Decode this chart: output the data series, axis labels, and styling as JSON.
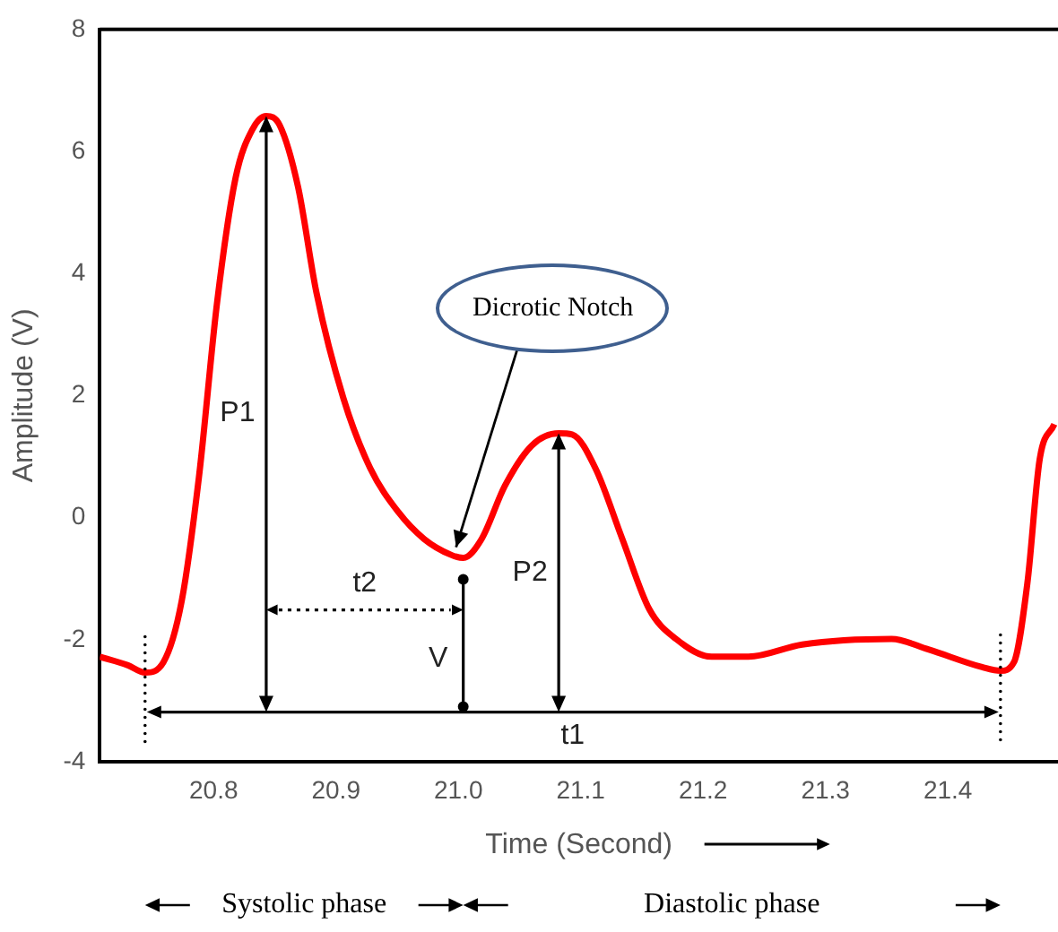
{
  "chart_data": {
    "type": "line",
    "xlabel": "Time (Second)",
    "ylabel": "Amplitude (V)",
    "x": [
      20.707,
      20.73,
      20.744,
      20.759,
      20.774,
      20.788,
      20.803,
      20.818,
      20.832,
      20.843,
      20.854,
      20.869,
      20.884,
      20.906,
      20.928,
      20.951,
      20.972,
      20.994,
      21.004,
      21.019,
      21.038,
      21.06,
      21.082,
      21.093,
      21.112,
      21.134,
      21.156,
      21.178,
      21.207,
      21.237,
      21.281,
      21.354,
      21.384,
      21.428,
      21.443,
      21.454,
      21.465,
      21.475,
      21.487
    ],
    "series": [
      {
        "color": "#ff0000",
        "values": [
          -2.28,
          -2.42,
          -2.54,
          -2.37,
          -1.36,
          0.66,
          3.55,
          5.57,
          6.37,
          6.58,
          6.43,
          5.42,
          3.69,
          1.96,
          0.81,
          0.09,
          -0.35,
          -0.61,
          -0.66,
          -0.35,
          0.52,
          1.18,
          1.38,
          1.36,
          0.81,
          -0.35,
          -1.5,
          -1.99,
          -2.28,
          -2.28,
          -2.08,
          -1.99,
          -2.16,
          -2.45,
          -2.51,
          -2.37,
          -1.07,
          0.95,
          1.53
        ]
      }
    ],
    "xlim": [
      20.707,
      21.49
    ],
    "xticks": [
      20.8,
      20.9,
      {
        "value": 21,
        "label": "21.0"
      },
      21.1,
      21.2,
      21.3,
      21.4
    ],
    "ylim": [
      -4,
      8
    ],
    "yticks": [
      -4,
      -2,
      0,
      2,
      4,
      6,
      8
    ],
    "grid": false,
    "legend": false,
    "marker": "none",
    "line_style": "solid",
    "annotations": [
      "P1",
      "P2",
      "V",
      "t2",
      "t1",
      {
        "text": "Dicrotic Notch",
        "x": 21.004,
        "y": -0.66
      },
      "Systolic phase",
      "Diastolic phase"
    ]
  }
}
